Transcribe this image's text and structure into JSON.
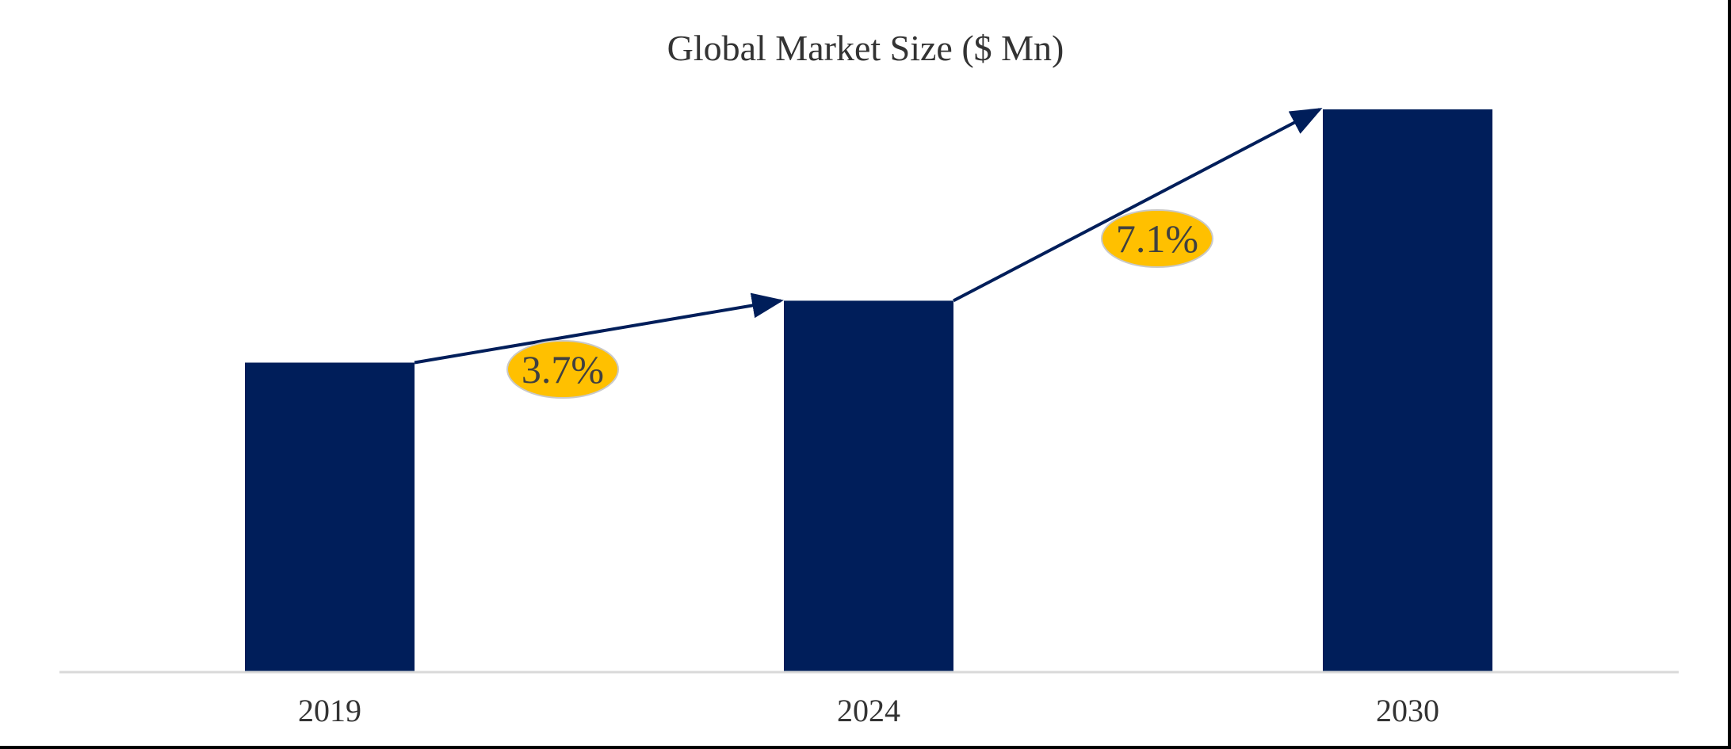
{
  "chart_data": {
    "type": "bar",
    "title": "Global Market Size ($ Mn)",
    "xlabel": "",
    "ylabel": "",
    "categories": [
      "2019",
      "2024",
      "2030"
    ],
    "values": [
      55,
      66,
      100
    ],
    "ylim": [
      0,
      100
    ],
    "value_axis_visible": false,
    "grid": false,
    "bar_color": "#001e5a",
    "axis_color": "#d9d9d9",
    "annotations": [
      {
        "label": "3.7%",
        "from_category": "2019",
        "to_category": "2024",
        "type": "growth-arrow",
        "badge_color": "#ffc000"
      },
      {
        "label": "7.1%",
        "from_category": "2024",
        "to_category": "2030",
        "type": "growth-arrow",
        "badge_color": "#ffc000"
      }
    ]
  }
}
